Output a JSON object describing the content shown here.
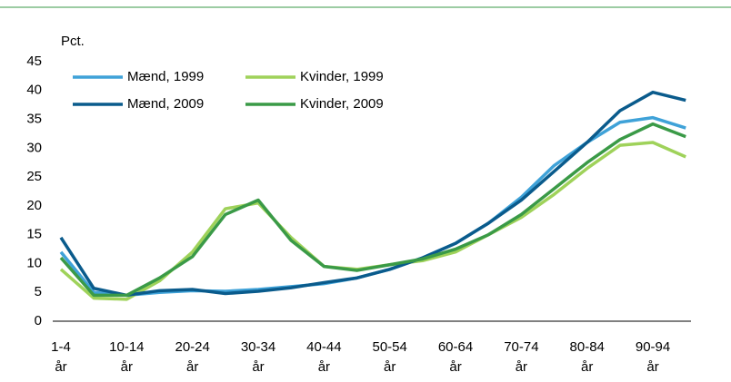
{
  "chart_data": {
    "type": "line",
    "y_label": "Pct.",
    "categories": [
      "1-4 år",
      null,
      "10-14 år",
      null,
      "20-24 år",
      null,
      "30-34 år",
      null,
      "40-44 år",
      null,
      "50-54 år",
      null,
      "60-64 år",
      null,
      "70-74 år",
      null,
      "80-84 år",
      null,
      "90-94 år",
      null
    ],
    "series": [
      {
        "name": "Mænd, 1999",
        "color": "#3fa2d8",
        "values": [
          12,
          5,
          4.5,
          5,
          5.3,
          5.2,
          5.5,
          6,
          6.5,
          7.5,
          9,
          11,
          13.5,
          17,
          21.5,
          27,
          31,
          34.5,
          35.3,
          33.5
        ]
      },
      {
        "name": "Kvinder, 1999",
        "color": "#9fd25a",
        "values": [
          9,
          4,
          3.8,
          7,
          12,
          19.5,
          20.5,
          14.5,
          9.5,
          9,
          9.8,
          10.5,
          12,
          15,
          18,
          22,
          26.5,
          30.5,
          31,
          28.5
        ]
      },
      {
        "name": "Mænd, 2009",
        "color": "#0a5b8c",
        "values": [
          14.5,
          5.7,
          4.5,
          5.3,
          5.5,
          4.8,
          5.2,
          5.8,
          6.7,
          7.5,
          9,
          11,
          13.5,
          17,
          21,
          26,
          31,
          36.5,
          39.7,
          38.3
        ]
      },
      {
        "name": "Kvinder, 2009",
        "color": "#3a9a47",
        "values": [
          11,
          4.5,
          4.5,
          7.5,
          11.2,
          18.5,
          21,
          14,
          9.5,
          8.8,
          9.8,
          10.8,
          12.5,
          15,
          18.5,
          23,
          27.5,
          31.5,
          34.2,
          32
        ]
      }
    ],
    "ylim": [
      0,
      45
    ],
    "yticks": [
      0,
      5,
      10,
      15,
      20,
      25,
      30,
      35,
      40,
      45
    ],
    "grid": false
  }
}
